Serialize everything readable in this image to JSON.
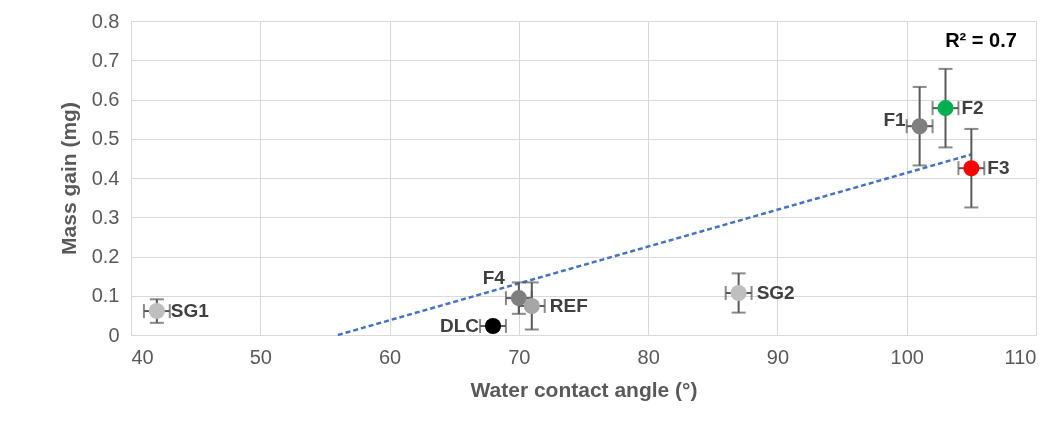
{
  "chart_data": {
    "type": "scatter",
    "xlabel": "Water contact angle (°)",
    "ylabel": "Mass gain (mg)",
    "xlim": [
      40,
      110
    ],
    "xticks": [
      40,
      50,
      60,
      70,
      80,
      90,
      100,
      110
    ],
    "ylim": [
      0,
      0.8
    ],
    "yticks": [
      0,
      0.1,
      0.2,
      0.3,
      0.4,
      0.5,
      0.6,
      0.7,
      0.8
    ],
    "grid": true,
    "series": [
      {
        "type": "scatter",
        "marker": "circle",
        "x": [
          42,
          68,
          70,
          71,
          87,
          101,
          103,
          105
        ],
        "values": [
          0.061,
          0.023,
          0.094,
          0.074,
          0.107,
          0.532,
          0.578,
          0.425
        ],
        "colors": [
          "#bfbfbf",
          "#000000",
          "#7f7f7f",
          "#a6a6a6",
          "#bfbfbf",
          "#7f7f7f",
          "#00b050",
          "#ff0000"
        ],
        "errors": [
          0.03,
          0.01,
          0.04,
          0.06,
          0.05,
          0.1,
          0.1,
          0.1
        ],
        "xerrors": [
          1,
          1,
          1,
          1,
          1,
          1,
          1,
          1
        ]
      },
      {
        "type": "line",
        "color": "#4472c4",
        "line_style": "dashed",
        "x": [
          56,
          105
        ],
        "values": [
          0,
          0.46
        ]
      }
    ],
    "annotations": [
      {
        "text": "SG1",
        "x": 42,
        "y": 0.061
      },
      {
        "text": "DLC",
        "x": 68,
        "y": 0.023
      },
      {
        "text": "F4",
        "x": 70,
        "y": 0.094
      },
      {
        "text": "REF",
        "x": 71,
        "y": 0.074
      },
      {
        "text": "SG2",
        "x": 87,
        "y": 0.107
      },
      {
        "text": "F1",
        "x": 101,
        "y": 0.532
      },
      {
        "text": "F2",
        "x": 103,
        "y": 0.578
      },
      {
        "text": "F3",
        "x": 105,
        "y": 0.425
      },
      "R² = 0.7"
    ]
  }
}
